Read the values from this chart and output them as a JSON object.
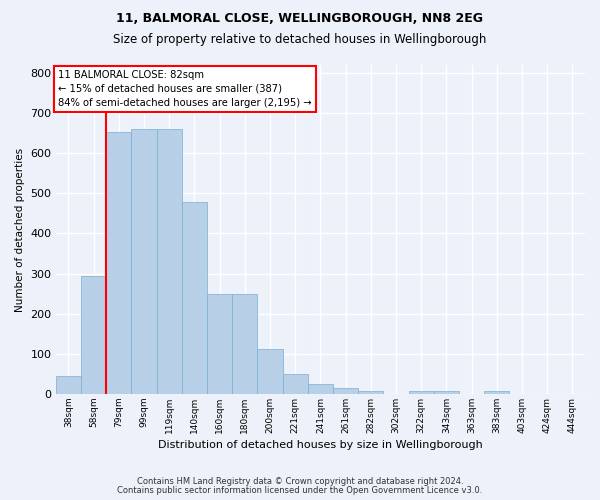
{
  "title1": "11, BALMORAL CLOSE, WELLINGBOROUGH, NN8 2EG",
  "title2": "Size of property relative to detached houses in Wellingborough",
  "xlabel": "Distribution of detached houses by size in Wellingborough",
  "ylabel": "Number of detached properties",
  "bin_labels": [
    "38sqm",
    "58sqm",
    "79sqm",
    "99sqm",
    "119sqm",
    "140sqm",
    "160sqm",
    "180sqm",
    "200sqm",
    "221sqm",
    "241sqm",
    "261sqm",
    "282sqm",
    "302sqm",
    "322sqm",
    "343sqm",
    "363sqm",
    "383sqm",
    "403sqm",
    "424sqm",
    "444sqm"
  ],
  "bar_values": [
    45,
    293,
    653,
    660,
    660,
    478,
    250,
    250,
    113,
    49,
    25,
    15,
    8,
    0,
    8,
    8,
    0,
    6,
    0,
    0,
    0
  ],
  "bar_color": "#b8cfe8",
  "bar_edgecolor": "#7aafd4",
  "redline_index": 2.0,
  "annotation_text": "11 BALMORAL CLOSE: 82sqm\n← 15% of detached houses are smaller (387)\n84% of semi-detached houses are larger (2,195) →",
  "redline_color": "red",
  "ylim": [
    0,
    820
  ],
  "yticks": [
    0,
    100,
    200,
    300,
    400,
    500,
    600,
    700,
    800
  ],
  "footer1": "Contains HM Land Registry data © Crown copyright and database right 2024.",
  "footer2": "Contains public sector information licensed under the Open Government Licence v3.0.",
  "background_color": "#edf1f9",
  "grid_color": "white",
  "title1_fontsize": 9,
  "title2_fontsize": 8.5
}
